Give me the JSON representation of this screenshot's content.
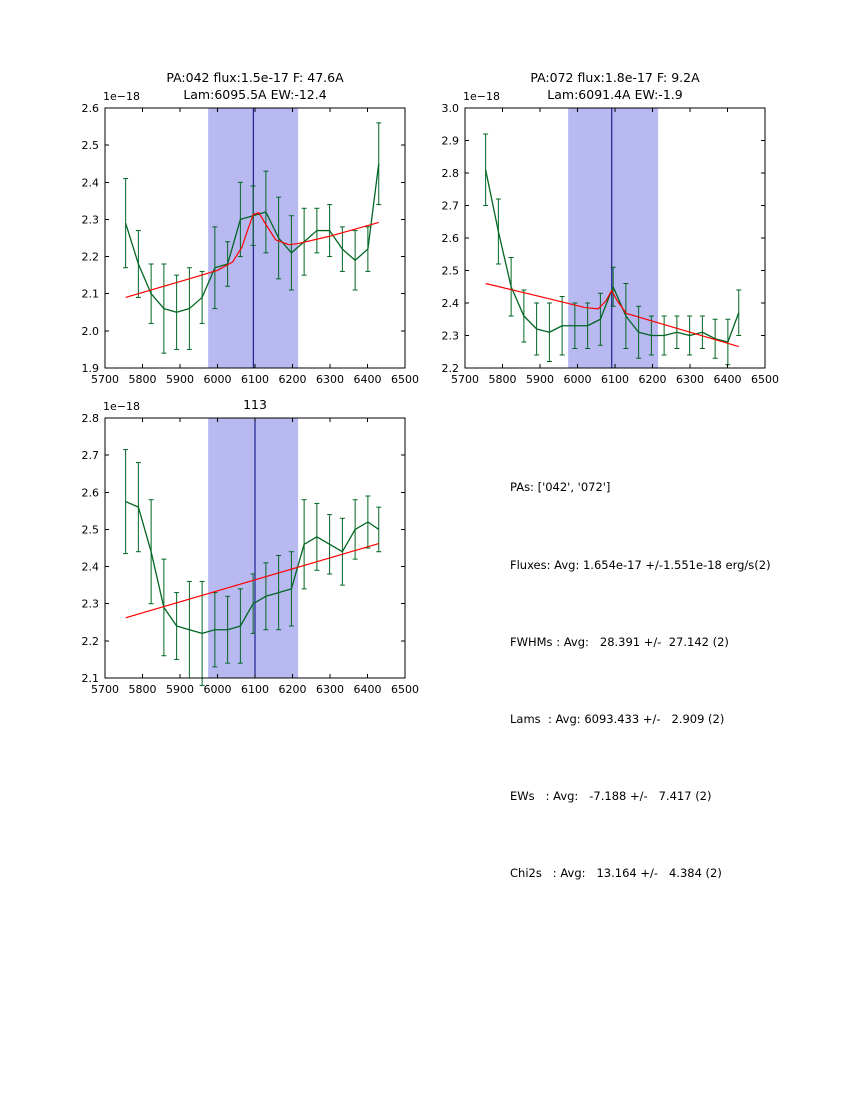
{
  "colors": {
    "background": "#ffffff",
    "axes": "#000000",
    "band": "#b9b9f2",
    "vline": "#000080",
    "spectrum": "#006622",
    "fit": "#ff0000"
  },
  "chart_data": [
    {
      "type": "line",
      "title_lines": [
        "PA:042 flux:1.5e-17 F: 47.6A",
        "Lam:6095.5A EW:-12.4"
      ],
      "offset_label": "1e−18",
      "xlim": [
        5700,
        6500
      ],
      "ylim": [
        1.9,
        2.6
      ],
      "xticks": [
        5700,
        5800,
        5900,
        6000,
        6100,
        6200,
        6300,
        6400,
        6500
      ],
      "yticks": [
        1.9,
        2.0,
        2.1,
        2.2,
        2.3,
        2.4,
        2.5,
        2.6
      ],
      "band": [
        5975,
        6215
      ],
      "vline": 6095.5,
      "legend": "off",
      "grid": "off",
      "series": [
        {
          "name": "spectrum",
          "color": "#006622",
          "x": [
            5755,
            5789,
            5823,
            5857,
            5891,
            5925,
            5959,
            5993,
            6027,
            6061,
            6095,
            6129,
            6163,
            6197,
            6231,
            6265,
            6299,
            6333,
            6367,
            6401,
            6430
          ],
          "y": [
            2.29,
            2.18,
            2.1,
            2.06,
            2.05,
            2.06,
            2.09,
            2.17,
            2.18,
            2.3,
            2.31,
            2.32,
            2.25,
            2.21,
            2.24,
            2.27,
            2.27,
            2.22,
            2.19,
            2.22,
            2.45
          ],
          "yerr": [
            0.12,
            0.09,
            0.08,
            0.12,
            0.1,
            0.11,
            0.07,
            0.11,
            0.06,
            0.1,
            0.08,
            0.11,
            0.11,
            0.1,
            0.09,
            0.06,
            0.07,
            0.06,
            0.08,
            0.06,
            0.11
          ]
        },
        {
          "name": "linear-gaussian-fit",
          "color": "#ff0000",
          "x": [
            5755,
            5925,
            6000,
            6040,
            6065,
            6080,
            6095,
            6110,
            6130,
            6155,
            6190,
            6215,
            6300,
            6430
          ],
          "y": [
            2.09,
            2.14,
            2.163,
            2.185,
            2.225,
            2.27,
            2.313,
            2.318,
            2.285,
            2.245,
            2.232,
            2.235,
            2.255,
            2.292
          ]
        }
      ]
    },
    {
      "type": "line",
      "title_lines": [
        "PA:072 flux:1.8e-17 F: 9.2A",
        "Lam:6091.4A EW:-1.9"
      ],
      "offset_label": "1e−18",
      "xlim": [
        5700,
        6500
      ],
      "ylim": [
        2.2,
        3.0
      ],
      "xticks": [
        5700,
        5800,
        5900,
        6000,
        6100,
        6200,
        6300,
        6400,
        6500
      ],
      "yticks": [
        2.2,
        2.3,
        2.4,
        2.5,
        2.6,
        2.7,
        2.8,
        2.9,
        3.0
      ],
      "band": [
        5975,
        6215
      ],
      "vline": 6091.4,
      "legend": "off",
      "grid": "off",
      "series": [
        {
          "name": "spectrum",
          "color": "#006622",
          "x": [
            5755,
            5789,
            5823,
            5857,
            5891,
            5925,
            5959,
            5993,
            6027,
            6061,
            6095,
            6129,
            6163,
            6197,
            6231,
            6265,
            6299,
            6333,
            6367,
            6401,
            6430
          ],
          "y": [
            2.81,
            2.62,
            2.45,
            2.36,
            2.32,
            2.31,
            2.33,
            2.33,
            2.33,
            2.35,
            2.45,
            2.36,
            2.31,
            2.3,
            2.3,
            2.31,
            2.3,
            2.31,
            2.29,
            2.28,
            2.37
          ],
          "yerr": [
            0.11,
            0.1,
            0.09,
            0.08,
            0.08,
            0.09,
            0.09,
            0.07,
            0.07,
            0.08,
            0.06,
            0.1,
            0.08,
            0.06,
            0.06,
            0.05,
            0.06,
            0.05,
            0.06,
            0.07,
            0.07
          ]
        },
        {
          "name": "linear-gaussian-fit",
          "color": "#ff0000",
          "x": [
            5755,
            5925,
            6020,
            6055,
            6075,
            6091,
            6107,
            6130,
            6215,
            6430
          ],
          "y": [
            2.46,
            2.413,
            2.386,
            2.382,
            2.405,
            2.438,
            2.405,
            2.368,
            2.339,
            2.266
          ]
        }
      ]
    },
    {
      "type": "line",
      "title_lines": [
        "113"
      ],
      "offset_label": "1e−18",
      "xlim": [
        5700,
        6500
      ],
      "ylim": [
        2.1,
        2.8
      ],
      "xticks": [
        5700,
        5800,
        5900,
        6000,
        6100,
        6200,
        6300,
        6400,
        6500
      ],
      "yticks": [
        2.1,
        2.2,
        2.3,
        2.4,
        2.5,
        2.6,
        2.7,
        2.8
      ],
      "band": [
        5975,
        6215
      ],
      "vline": 6100,
      "legend": "off",
      "grid": "off",
      "series": [
        {
          "name": "spectrum",
          "color": "#006622",
          "x": [
            5755,
            5789,
            5823,
            5857,
            5891,
            5925,
            5959,
            5993,
            6027,
            6061,
            6095,
            6129,
            6163,
            6197,
            6231,
            6265,
            6299,
            6333,
            6367,
            6401,
            6430
          ],
          "y": [
            2.575,
            2.56,
            2.44,
            2.29,
            2.24,
            2.23,
            2.22,
            2.23,
            2.23,
            2.24,
            2.3,
            2.32,
            2.33,
            2.34,
            2.46,
            2.48,
            2.46,
            2.44,
            2.5,
            2.52,
            2.5
          ],
          "yerr": [
            0.14,
            0.12,
            0.14,
            0.13,
            0.09,
            0.13,
            0.14,
            0.1,
            0.09,
            0.1,
            0.08,
            0.09,
            0.1,
            0.1,
            0.12,
            0.09,
            0.08,
            0.09,
            0.08,
            0.07,
            0.06
          ]
        },
        {
          "name": "linear-fit",
          "color": "#ff0000",
          "x": [
            5755,
            6430
          ],
          "y": [
            2.262,
            2.462
          ]
        }
      ]
    }
  ],
  "stats": {
    "lines": [
      "PAs: ['042', '072']",
      "Fluxes: Avg: 1.654e-17 +/-1.551e-18 erg/s(2)",
      "FWHMs : Avg:   28.391 +/-  27.142 (2)",
      "Lams  : Avg: 6093.433 +/-   2.909 (2)",
      "EWs   : Avg:   -7.188 +/-   7.417 (2)",
      "Chi2s   : Avg:   13.164 +/-   4.384 (2)"
    ]
  }
}
